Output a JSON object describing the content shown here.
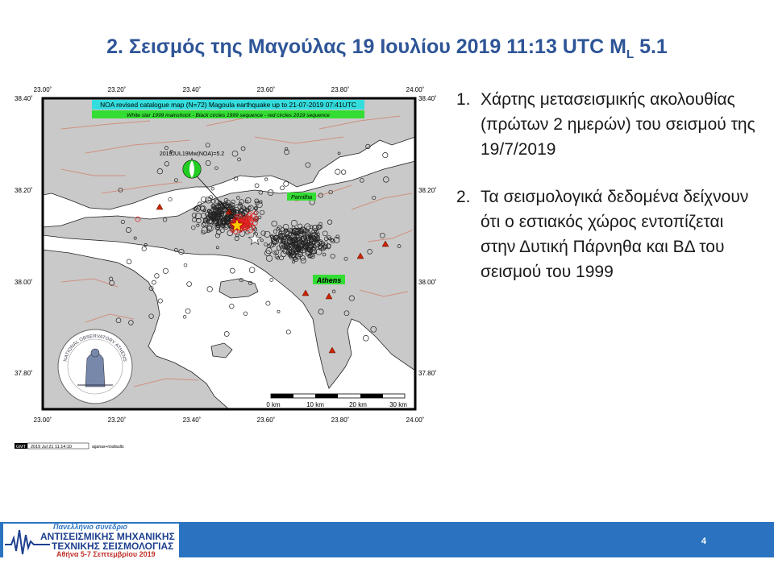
{
  "slide": {
    "title_main": "2. Σεισμός της Μαγούλας 19 Ιουλίου 2019 11:13 UTC M",
    "title_sub": "L",
    "title_end": " 5.1",
    "page_number": "4"
  },
  "bullets": [
    {
      "num": "1.",
      "text": "Χάρτης μετασεισμικής ακολουθίας (πρώτων 2 ημερών) του σεισμού της 19/7/2019"
    },
    {
      "num": "2.",
      "text": "Τα σεισμολογικά δεδομένα δείχνουν ότι ο εστιακός χώρος εντοπίζεται στην Δυτική Πάρνηθα και ΒΔ του σεισμού του 1999"
    }
  ],
  "map": {
    "header_line1": "NOA revised catalogue map (N=72) Magoula earthquake up to 21-07-2019 07:41UTC",
    "header_line2": "White star 1999 mainshock - Black circles 1999 sequence - red circles 2019 sequence",
    "lon_ticks": [
      "23.00˚",
      "23.20˚",
      "23.40˚",
      "23.60˚",
      "23.80˚",
      "24.00˚"
    ],
    "lat_ticks": [
      "38.40˚",
      "38.20˚",
      "38.00˚",
      "37.80˚"
    ],
    "labels": {
      "event": "2019JUL19Mw(NOA)=5.2",
      "parnitha": "Parnitha",
      "athens": "Athens"
    },
    "scale_labels": [
      "0 km",
      "10 km",
      "20 km",
      "30 km"
    ],
    "gmt_stamp": "2019 Jul 21 11:14:10",
    "gmt_logo": "GMT",
    "gmt_user": "aganas+noafaults",
    "seal_text": "NATIONAL OBSERVATORY ATHENS",
    "colors": {
      "land": "#c9c9c9",
      "sea": "#ffffff",
      "fault": "#d09080",
      "sequence_2019": "#e02020",
      "label_bg": "#33dd33",
      "header_bg": "#33dddd"
    }
  },
  "footer": {
    "logo_line1": "Πανελλήνιο συνέδριο",
    "logo_line2": "ΑΝΤΙΣΕΙΣΜΙΚΗΣ ΜΗΧΑΝΙΚΗΣ",
    "logo_line3": "ΤΕΧΝΙΚΗΣ ΣΕΙΣΜΟΛΟΓΙΑΣ",
    "logo_line4": "Αθήνα 5-7 Σεπτεμβρίου 2019"
  }
}
